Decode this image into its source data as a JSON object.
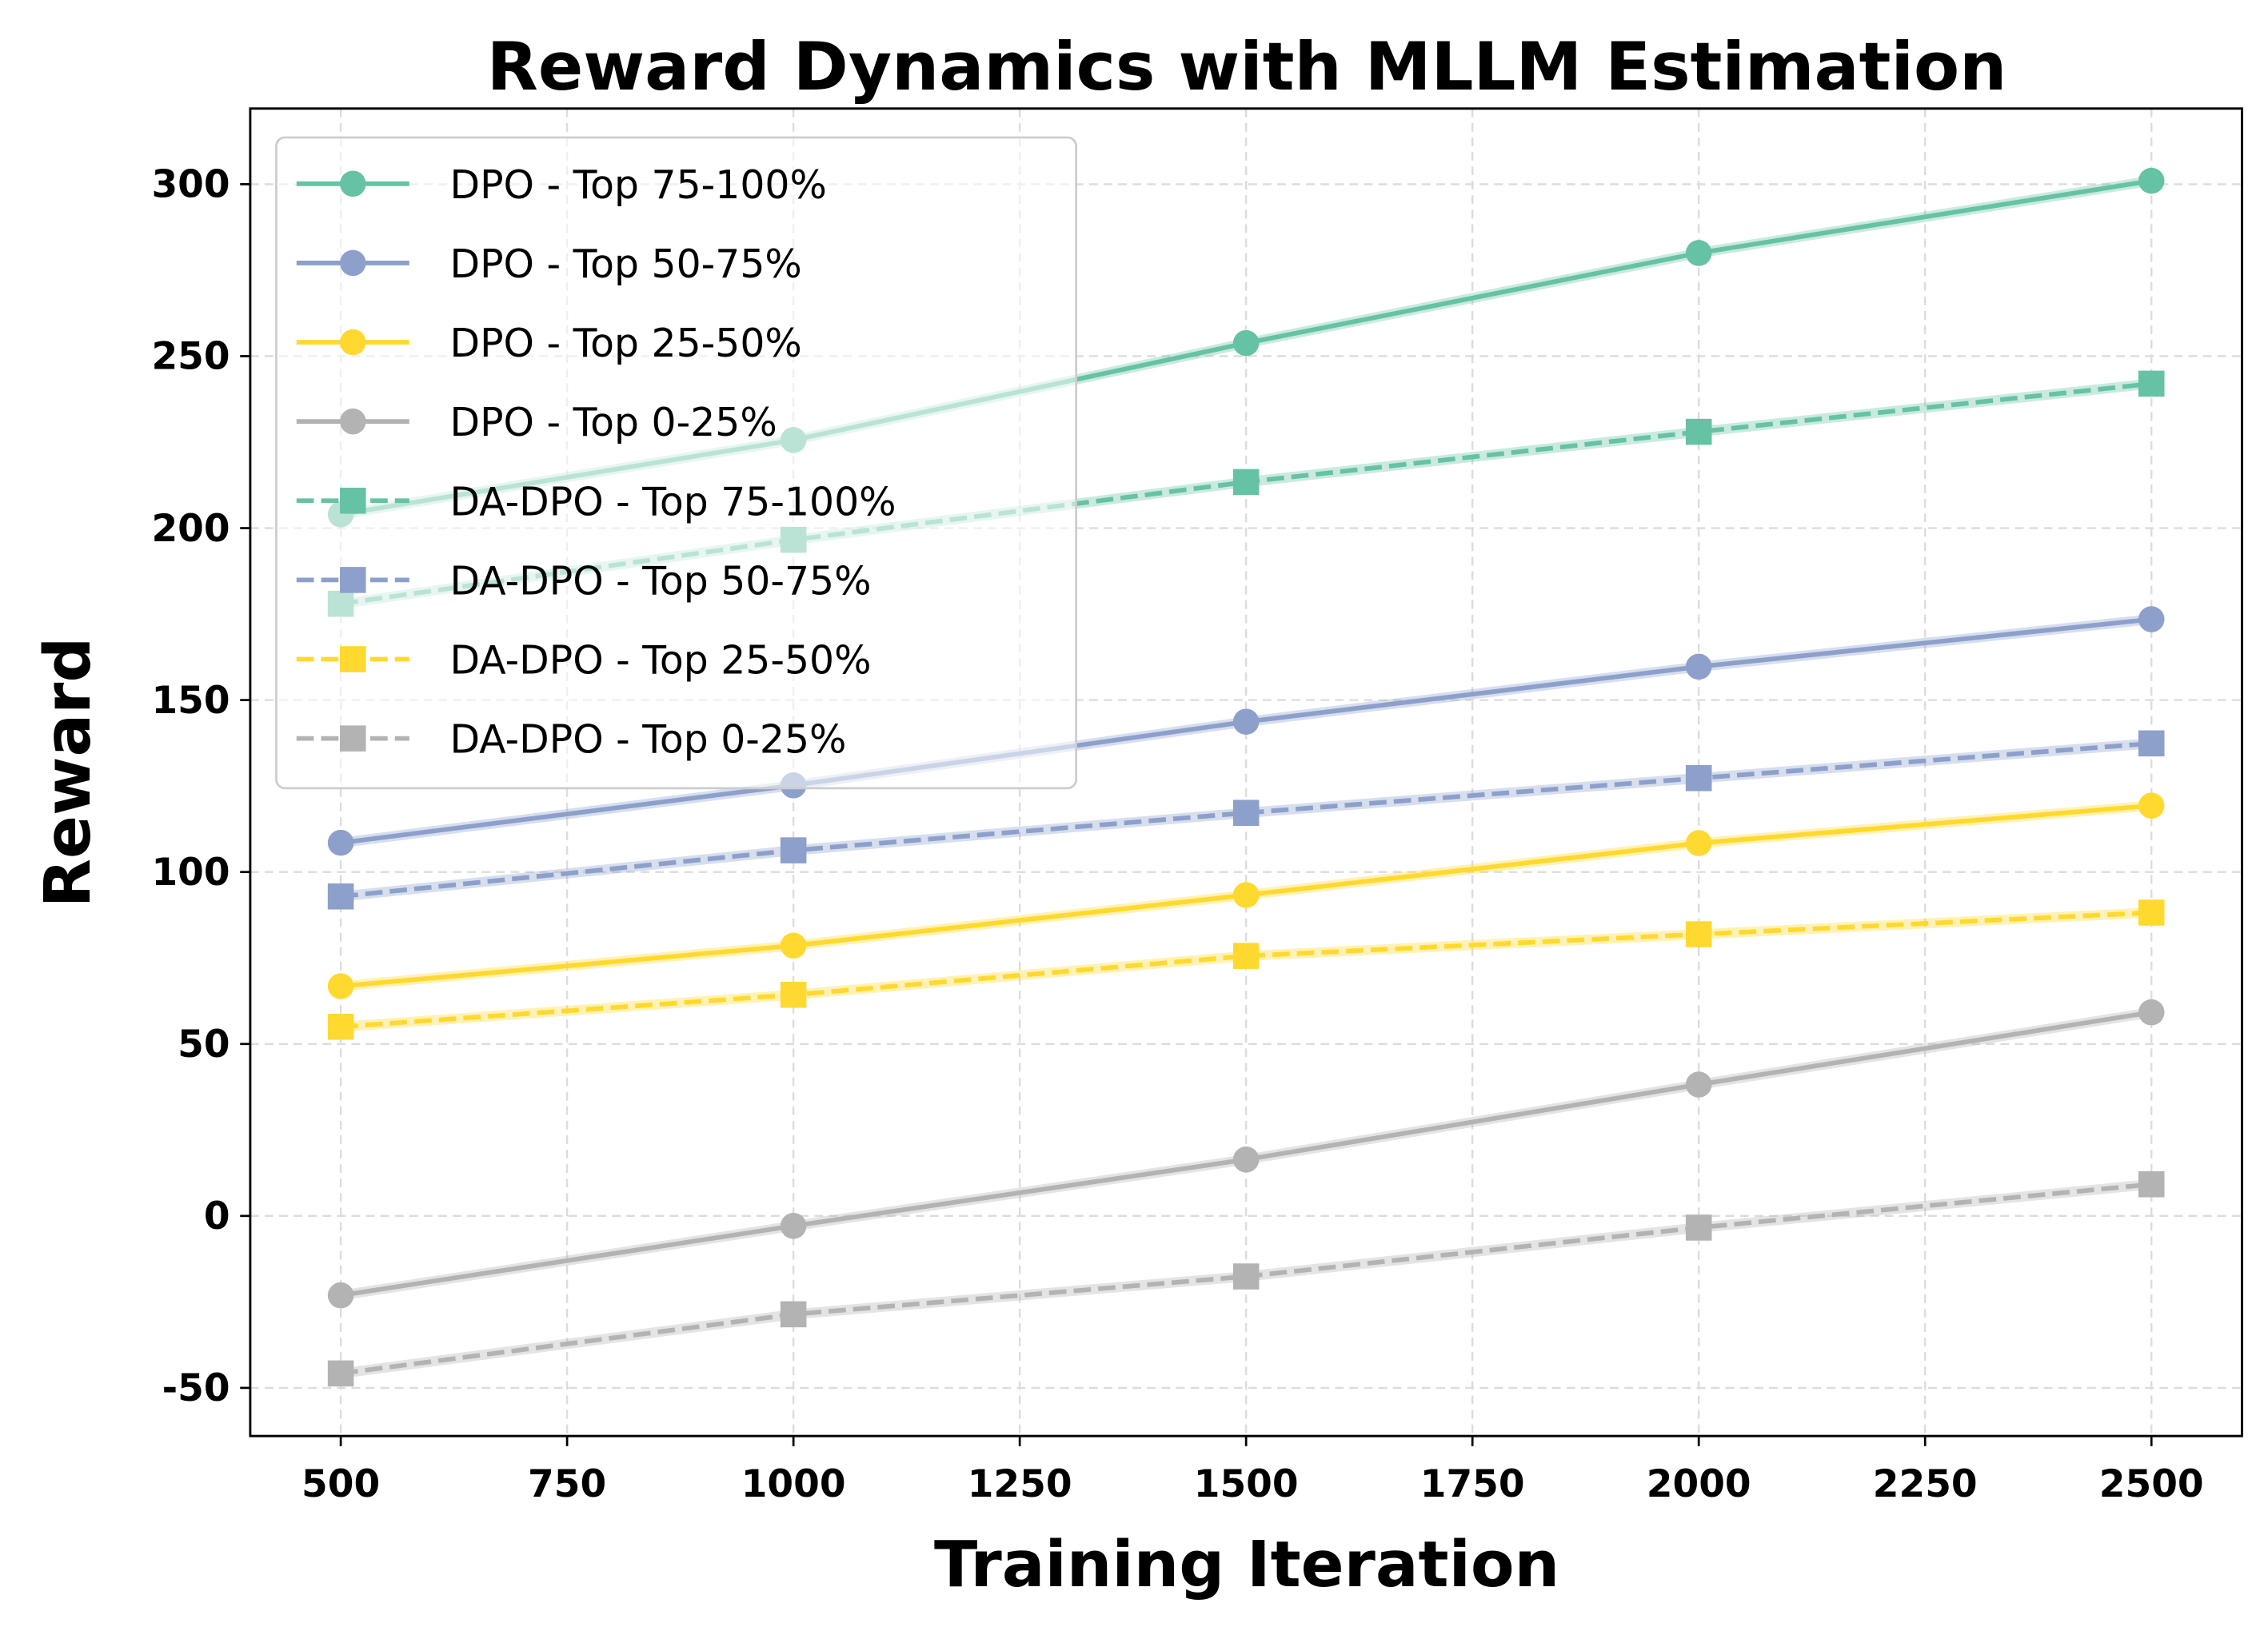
{
  "chart_data": {
    "type": "line",
    "title": "Reward Dynamics with MLLM Estimation",
    "xlabel": "Training Iteration",
    "ylabel": "Reward",
    "xlim": [
      400,
      2600
    ],
    "ylim": [
      -64,
      322
    ],
    "xticks": [
      500,
      750,
      1000,
      1250,
      1500,
      1750,
      2000,
      2250,
      2500
    ],
    "yticks": [
      -50,
      0,
      50,
      100,
      150,
      200,
      250,
      300
    ],
    "grid": true,
    "legend_position": "top-left",
    "x": [
      500,
      1000,
      1500,
      2000,
      2500
    ],
    "series": [
      {
        "name": "DPO - Top 75-100%",
        "color": "#66c2a5",
        "style": "solid",
        "marker": "circle",
        "values": [
          204,
          225.6,
          253.8,
          280,
          301
        ]
      },
      {
        "name": "DPO - Top 50-75%",
        "color": "#8da0cb",
        "style": "solid",
        "marker": "circle",
        "values": [
          108.5,
          125.2,
          143.7,
          159.7,
          173.5
        ]
      },
      {
        "name": "DPO - Top 25-50%",
        "color": "#ffd92f",
        "style": "solid",
        "marker": "circle",
        "values": [
          66.8,
          78.6,
          93.3,
          108.4,
          119.3
        ]
      },
      {
        "name": "DPO - Top 0-25%",
        "color": "#b3b3b3",
        "style": "solid",
        "marker": "circle",
        "values": [
          -23.1,
          -2.9,
          16.4,
          38.2,
          59.2
        ]
      },
      {
        "name": "DA-DPO - Top 75-100%",
        "color": "#66c2a5",
        "style": "dashed",
        "marker": "square",
        "values": [
          178,
          196.6,
          213.4,
          228,
          242
        ]
      },
      {
        "name": "DA-DPO - Top 50-75%",
        "color": "#8da0cb",
        "style": "dashed",
        "marker": "square",
        "values": [
          92.9,
          106.3,
          117.2,
          127.3,
          137.4
        ]
      },
      {
        "name": "DA-DPO - Top 25-50%",
        "color": "#ffd92f",
        "style": "dashed",
        "marker": "square",
        "values": [
          55,
          64.3,
          75.6,
          81.9,
          88.2
        ]
      },
      {
        "name": "DA-DPO - Top 0-25%",
        "color": "#b3b3b3",
        "style": "dashed",
        "marker": "square",
        "values": [
          -45.8,
          -28.6,
          -17.6,
          -3.4,
          9.2
        ]
      }
    ]
  }
}
